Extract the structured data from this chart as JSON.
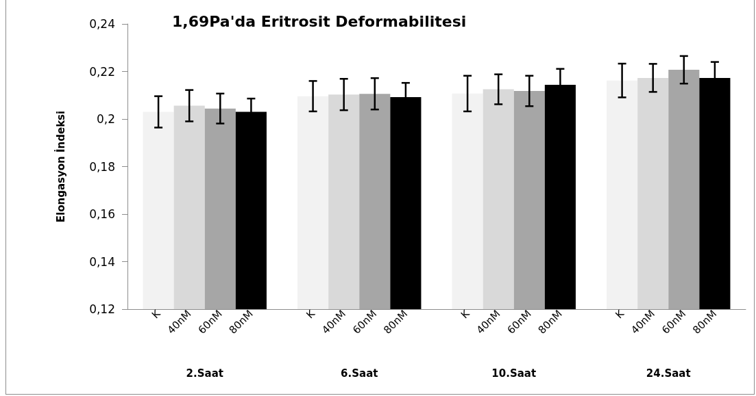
{
  "chart_data": {
    "type": "bar",
    "title": "1,69Pa'da Eritrosit Deformabilitesi",
    "ylabel": "Elongasyon İndeksi",
    "categories": [
      "2.Saat",
      "6.Saat",
      "10.Saat",
      "24.Saat"
    ],
    "series": [
      {
        "name": "K",
        "color": "#f2f2f2",
        "values": [
          0.203,
          0.2096,
          0.2107,
          0.2162
        ],
        "errors": [
          0.0066,
          0.0064,
          0.0075,
          0.0071
        ]
      },
      {
        "name": "40nM",
        "color": "#d9d9d9",
        "values": [
          0.2056,
          0.2103,
          0.2125,
          0.2173
        ],
        "errors": [
          0.0066,
          0.0066,
          0.0063,
          0.0059
        ]
      },
      {
        "name": "60nM",
        "color": "#a6a6a6",
        "values": [
          0.2044,
          0.2106,
          0.2118,
          0.2207
        ],
        "errors": [
          0.0063,
          0.0066,
          0.0064,
          0.0058
        ]
      },
      {
        "name": "80nM",
        "color": "#000000",
        "values": [
          0.203,
          0.2092,
          0.2144,
          0.2173
        ],
        "errors": [
          0.0056,
          0.006,
          0.0067,
          0.0067
        ]
      }
    ],
    "ylim": [
      0.12,
      0.24
    ],
    "yticks": [
      {
        "value": 0.12,
        "label": "0,12"
      },
      {
        "value": 0.14,
        "label": "0,14"
      },
      {
        "value": 0.16,
        "label": "0,16"
      },
      {
        "value": 0.18,
        "label": "0,18"
      },
      {
        "value": 0.2,
        "label": "0,2"
      },
      {
        "value": 0.22,
        "label": "0,22"
      },
      {
        "value": 0.24,
        "label": "0,24"
      }
    ],
    "grid": false,
    "legend": false
  }
}
